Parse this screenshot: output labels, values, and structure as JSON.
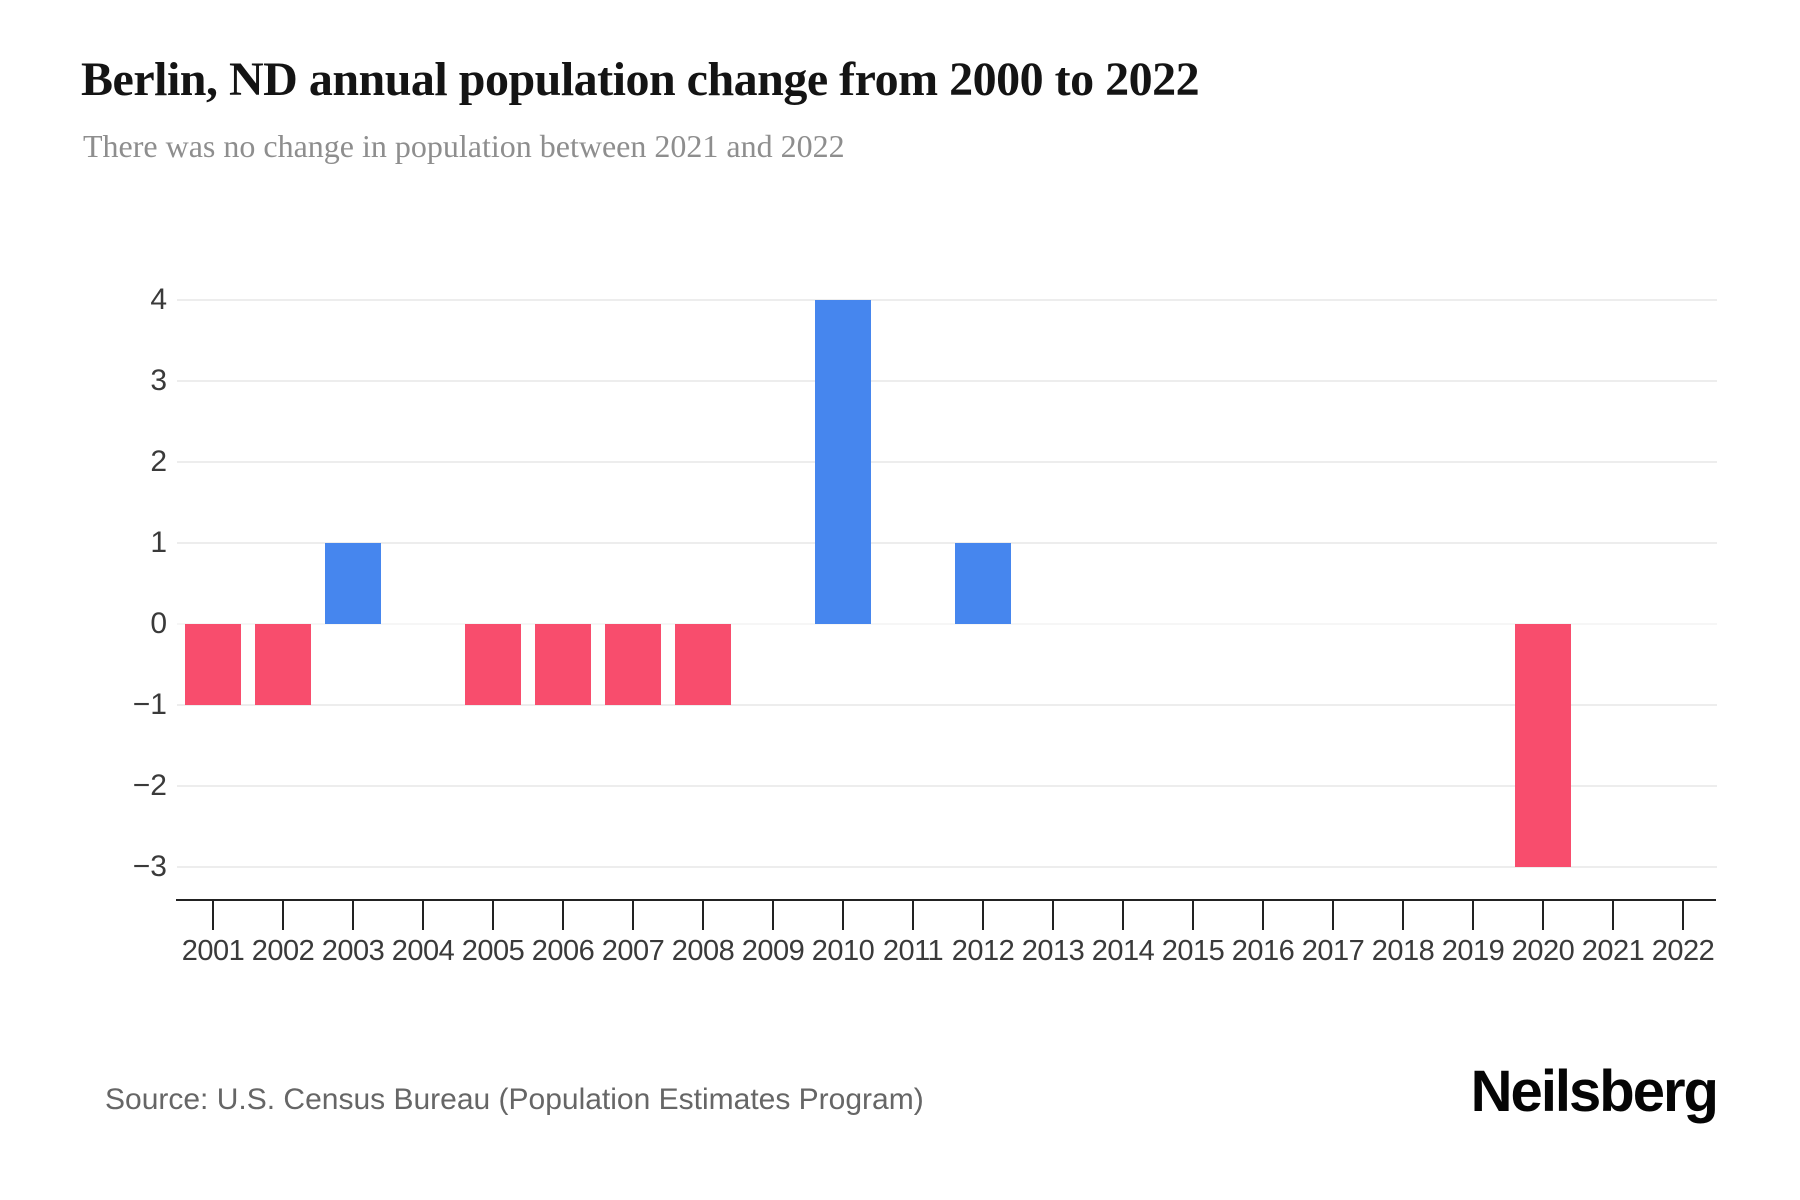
{
  "header": {
    "title": "Berlin, ND annual population change from 2000 to 2022",
    "subtitle": "There was no change in population between 2021 and 2022"
  },
  "footer": {
    "source": "Source: U.S. Census Bureau (Population Estimates Program)",
    "logo": "Neilsberg"
  },
  "colors": {
    "positive_bar": "#4686EE",
    "negative_bar": "#F84D6D",
    "gridline": "#ededed",
    "zeroline": "#f6f6f6",
    "axis_line": "#222222",
    "tick_label": "#3a3a3a",
    "title_text": "#141414",
    "subtitle_text": "#8e8e8e",
    "source_text": "#666666",
    "logo_text": "#050505"
  },
  "chart_data": {
    "type": "bar",
    "title": "Berlin, ND annual population change from 2000 to 2022",
    "subtitle": "There was no change in population between 2021 and 2022",
    "series_name": "Annual population change",
    "categories": [
      "2001",
      "2002",
      "2003",
      "2004",
      "2005",
      "2006",
      "2007",
      "2008",
      "2009",
      "2010",
      "2011",
      "2012",
      "2013",
      "2014",
      "2015",
      "2016",
      "2017",
      "2018",
      "2019",
      "2020",
      "2021",
      "2022"
    ],
    "values": [
      -1,
      -1,
      1,
      0,
      -1,
      -1,
      -1,
      -1,
      0,
      4,
      0,
      1,
      0,
      0,
      0,
      0,
      0,
      0,
      0,
      -3,
      0,
      0
    ],
    "xlabel": "",
    "ylabel": "",
    "yticks": [
      4,
      3,
      2,
      1,
      0,
      -1,
      -2,
      -3
    ],
    "ylim": [
      -3.4,
      4.4
    ],
    "grid": "horizontal",
    "legend": "none",
    "bar_colors": {
      "positive": "#4686EE",
      "negative": "#F84D6D"
    }
  }
}
